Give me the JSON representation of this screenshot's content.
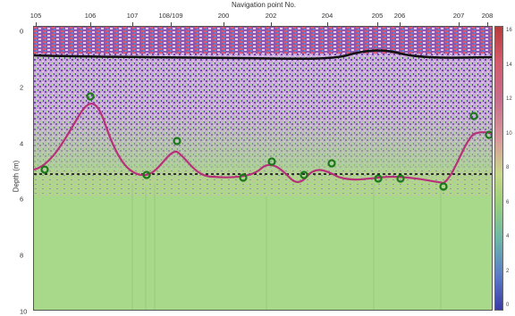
{
  "header": {
    "title": "Navigation point No."
  },
  "navigation_points": [
    "105",
    "106",
    "107",
    "108/109",
    "200",
    "202",
    "204",
    "205",
    "206",
    "207",
    "208"
  ],
  "axis": {
    "ylabel": "Depth (m)",
    "yticks": [
      "0",
      "2",
      "4",
      "6",
      "8",
      "10"
    ]
  },
  "colorbar": {
    "ticks": [
      "16",
      "14",
      "12",
      "10",
      "8",
      "6",
      "4",
      "2",
      "0"
    ]
  },
  "colors": {
    "background_lower": "#a8d88a",
    "noise_band": "#c8b0d8",
    "surface_line": "#111111",
    "profile_curve": "#b8307a",
    "reference_line": "#000000",
    "markers": "#1a7a1a"
  }
}
